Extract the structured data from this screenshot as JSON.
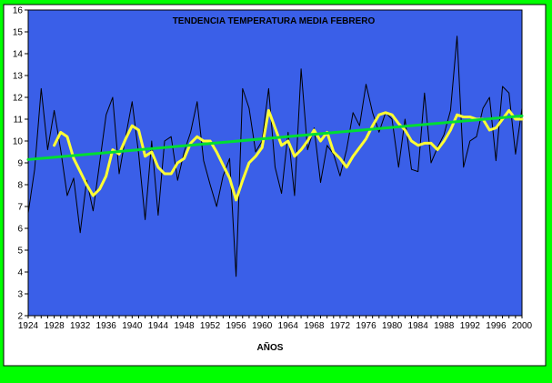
{
  "colors": {
    "outer_background": "#00ff00",
    "chart_area": "#ffffff",
    "plot_area": "#3a5fe8",
    "annual_series": "#000000",
    "moving_average": "#ffff33",
    "trend_line": "#00dd33"
  },
  "chart_data": {
    "type": "line",
    "title": "TENDENCIA TEMPERATURA MEDIA FEBRERO",
    "xlabel": "AÑOS",
    "ylabel": "",
    "xlim": [
      1924,
      2000
    ],
    "ylim": [
      2,
      16
    ],
    "x_ticks": [
      1924,
      1928,
      1932,
      1936,
      1940,
      1944,
      1948,
      1952,
      1956,
      1960,
      1964,
      1968,
      1972,
      1976,
      1980,
      1984,
      1988,
      1992,
      1996,
      2000
    ],
    "y_ticks": [
      2,
      3,
      4,
      5,
      6,
      7,
      8,
      9,
      10,
      11,
      12,
      13,
      14,
      15,
      16
    ],
    "legend": "none",
    "grid": false,
    "series": [
      {
        "x": [
          1924,
          1925,
          1926,
          1927,
          1928,
          1929,
          1930,
          1931,
          1932,
          1933,
          1934,
          1935,
          1936,
          1937,
          1938,
          1939,
          1940,
          1941,
          1942,
          1943,
          1944,
          1945,
          1946,
          1947,
          1948,
          1949,
          1950,
          1951,
          1952,
          1953,
          1954,
          1955,
          1956,
          1957,
          1958,
          1959,
          1960,
          1961,
          1962,
          1963,
          1964,
          1965,
          1966,
          1967,
          1968,
          1969,
          1970,
          1971,
          1972,
          1973,
          1974,
          1975,
          1976,
          1977,
          1978,
          1979,
          1980,
          1981,
          1982,
          1983,
          1984,
          1985,
          1986,
          1987,
          1988,
          1989,
          1990,
          1991,
          1992,
          1993,
          1994,
          1995,
          1996,
          1997,
          1998,
          1999,
          2000
        ],
        "values": [
          6.7,
          8.7,
          12.4,
          9.6,
          11.4,
          9.6,
          7.5,
          8.3,
          5.8,
          8.2,
          6.8,
          9.0,
          11.2,
          12.0,
          8.5,
          10.2,
          11.8,
          9.4,
          6.4,
          10.0,
          6.6,
          10.0,
          10.2,
          8.2,
          9.5,
          10.4,
          11.8,
          9.1,
          8.0,
          7.0,
          8.4,
          9.2,
          3.8,
          12.4,
          11.5,
          9.5,
          10.0,
          12.4,
          8.8,
          7.6,
          10.4,
          7.5,
          13.3,
          9.6,
          10.6,
          8.1,
          9.8,
          9.4,
          8.4,
          9.6,
          11.3,
          10.7,
          12.6,
          11.3,
          10.4,
          11.3,
          11.0,
          8.8,
          11.0,
          8.7,
          8.6,
          12.2,
          9.0,
          9.7,
          10.3,
          11.4,
          14.8,
          8.8,
          10.0,
          10.2,
          11.5,
          12.0,
          9.1,
          12.5,
          12.2,
          9.4,
          11.5
        ]
      },
      {
        "x": [
          1928,
          1929,
          1930,
          1931,
          1932,
          1933,
          1934,
          1935,
          1936,
          1937,
          1938,
          1939,
          1940,
          1941,
          1942,
          1943,
          1944,
          1945,
          1946,
          1947,
          1948,
          1949,
          1950,
          1951,
          1952,
          1953,
          1954,
          1955,
          1956,
          1957,
          1958,
          1959,
          1960,
          1961,
          1962,
          1963,
          1964,
          1965,
          1966,
          1967,
          1968,
          1969,
          1970,
          1971,
          1972,
          1973,
          1974,
          1975,
          1976,
          1977,
          1978,
          1979,
          1980,
          1981,
          1982,
          1983,
          1984,
          1985,
          1986,
          1987,
          1988,
          1989,
          1990,
          1991,
          1992,
          1993,
          1994,
          1995,
          1996,
          1997,
          1998,
          1999,
          2000
        ],
        "values": [
          9.8,
          10.4,
          10.2,
          9.2,
          8.6,
          8.0,
          7.5,
          7.8,
          8.4,
          9.6,
          9.4,
          10.1,
          10.7,
          10.5,
          9.3,
          9.5,
          8.8,
          8.5,
          8.5,
          9.0,
          9.2,
          9.9,
          10.2,
          10.0,
          10.0,
          9.5,
          8.9,
          8.3,
          7.3,
          8.2,
          9.0,
          9.3,
          9.7,
          11.4,
          10.6,
          9.8,
          10.0,
          9.3,
          9.6,
          10.0,
          10.5,
          10.0,
          10.4,
          9.5,
          9.2,
          8.8,
          9.3,
          9.7,
          10.1,
          10.7,
          11.2,
          11.3,
          11.2,
          10.8,
          10.5,
          10.0,
          9.8,
          9.9,
          9.9,
          9.6,
          10.0,
          10.5,
          11.2,
          11.1,
          11.1,
          11.0,
          11.0,
          10.5,
          10.6,
          11.0,
          11.4,
          11.0,
          11.0
        ]
      },
      {
        "x": [
          1924,
          2000
        ],
        "values": [
          9.15,
          11.15
        ]
      }
    ]
  }
}
